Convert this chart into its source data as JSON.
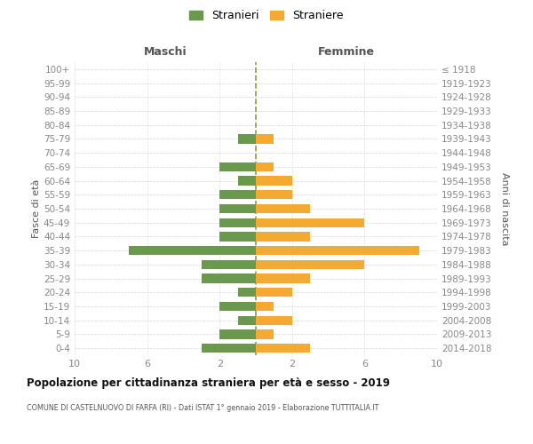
{
  "age_groups": [
    "0-4",
    "5-9",
    "10-14",
    "15-19",
    "20-24",
    "25-29",
    "30-34",
    "35-39",
    "40-44",
    "45-49",
    "50-54",
    "55-59",
    "60-64",
    "65-69",
    "70-74",
    "75-79",
    "80-84",
    "85-89",
    "90-94",
    "95-99",
    "100+"
  ],
  "birth_years": [
    "2014-2018",
    "2009-2013",
    "2004-2008",
    "1999-2003",
    "1994-1998",
    "1989-1993",
    "1984-1988",
    "1979-1983",
    "1974-1978",
    "1969-1973",
    "1964-1968",
    "1959-1963",
    "1954-1958",
    "1949-1953",
    "1944-1948",
    "1939-1943",
    "1934-1938",
    "1929-1933",
    "1924-1928",
    "1919-1923",
    "≤ 1918"
  ],
  "males": [
    3,
    2,
    1,
    2,
    1,
    3,
    3,
    7,
    2,
    2,
    2,
    2,
    1,
    2,
    0,
    1,
    0,
    0,
    0,
    0,
    0
  ],
  "females": [
    3,
    1,
    2,
    1,
    2,
    3,
    6,
    9,
    3,
    6,
    3,
    2,
    2,
    1,
    0,
    1,
    0,
    0,
    0,
    0,
    0
  ],
  "male_color": "#6a994e",
  "female_color": "#f4a930",
  "center_line_color": "#7a8a20",
  "grid_color": "#cccccc",
  "bg_color": "#ffffff",
  "title": "Popolazione per cittadinanza straniera per età e sesso - 2019",
  "subtitle": "COMUNE DI CASTELNUOVO DI FARFA (RI) - Dati ISTAT 1° gennaio 2019 - Elaborazione TUTTITALIA.IT",
  "header_left": "Maschi",
  "header_right": "Femmine",
  "ylabel_left": "Fasce di età",
  "ylabel_right": "Anni di nascita",
  "legend_male": "Stranieri",
  "legend_female": "Straniere",
  "xlim": 10
}
